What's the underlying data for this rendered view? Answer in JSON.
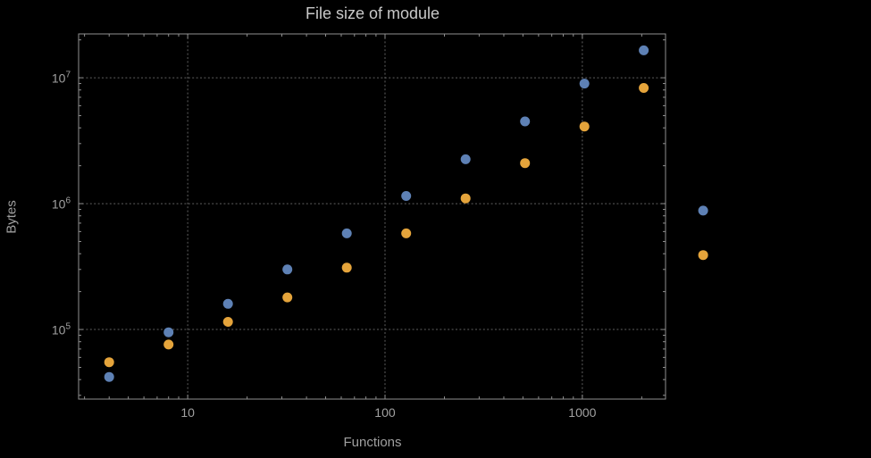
{
  "title": "File size of module",
  "axes": {
    "x_label": "Functions",
    "y_label": "Bytes",
    "x_ticks": [
      {
        "value": 10,
        "label": "10"
      },
      {
        "value": 100,
        "label": "100"
      },
      {
        "value": 1000,
        "label": "1000"
      }
    ],
    "y_ticks": [
      {
        "value": 100000,
        "base": "10",
        "exp": "5"
      },
      {
        "value": 1000000,
        "base": "10",
        "exp": "6"
      },
      {
        "value": 10000000,
        "base": "10",
        "exp": "7"
      }
    ]
  },
  "chart_data": {
    "type": "scatter",
    "x_scale": "log",
    "y_scale": "log",
    "title": "File size of module",
    "xlabel": "Functions",
    "ylabel": "Bytes",
    "xlim": [
      2.8,
      2640
    ],
    "ylim": [
      28000,
      22300000
    ],
    "grid": true,
    "legend": "none",
    "x": [
      4,
      8,
      16,
      32,
      64,
      128,
      256,
      512,
      1024,
      2048,
      4096
    ],
    "series": [
      {
        "name": "series-1-blue",
        "color": "#5e81b5",
        "values": [
          42000,
          95000,
          160000,
          300000,
          580000,
          1150000,
          2250000,
          4500000,
          9000000,
          16500000,
          880000
        ]
      },
      {
        "name": "series-2-orange",
        "color": "#e5a43b",
        "values": [
          55000,
          76000,
          115000,
          180000,
          310000,
          580000,
          1100000,
          2100000,
          4100000,
          8300000,
          390000
        ]
      }
    ]
  },
  "colors": {
    "background": "#000000",
    "frame": "#909090",
    "grid": "#636363",
    "title_text": "#c8c8c8",
    "label_text": "#a0a0a0",
    "series_blue": "#5e81b5",
    "series_orange": "#e5a43b"
  }
}
